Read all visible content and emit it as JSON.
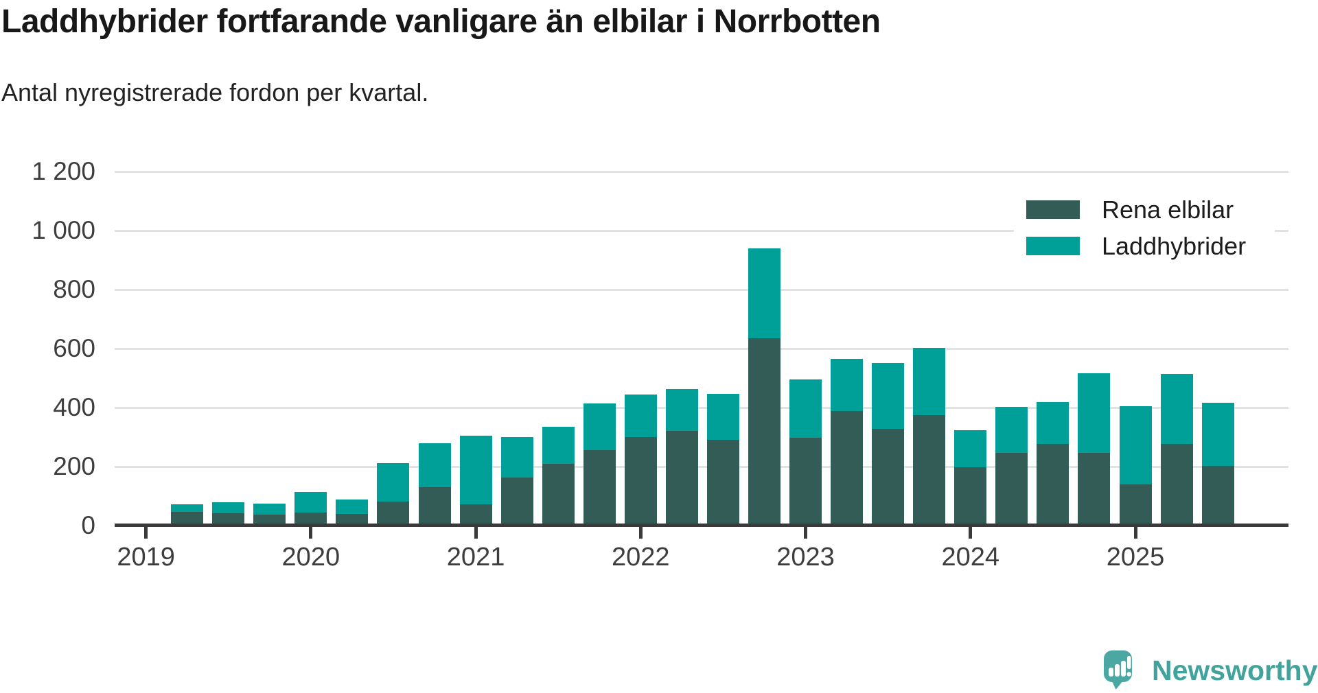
{
  "title": "Laddhybrider fortfarande vanligare än elbilar i Norrbotten",
  "subtitle": "Antal nyregistrerade fordon per kvartal.",
  "legend": {
    "items": [
      {
        "label": "Rena elbilar",
        "color": "#345c56"
      },
      {
        "label": "Laddhybrider",
        "color": "#00a099"
      }
    ]
  },
  "branding": {
    "name": "Newsworthy",
    "color": "#42a39d",
    "logo_icon": "newsworthy-speech-bubble-bar-chart-icon"
  },
  "chart_data": {
    "type": "bar",
    "stacked": true,
    "title": "Laddhybrider fortfarande vanligare än elbilar i Norrbotten",
    "subtitle": "Antal nyregistrerade fordon per kvartal.",
    "xlabel": "",
    "ylabel": "",
    "ylim": [
      0,
      1200
    ],
    "grid": true,
    "legend_position": "top-right",
    "y_ticks": [
      0,
      200,
      400,
      600,
      800,
      1000,
      1200
    ],
    "y_tick_labels": [
      "0",
      "200",
      "400",
      "600",
      "800",
      "1 000",
      "1 200"
    ],
    "x_tick_labels": [
      "2019",
      "2020",
      "2021",
      "2022",
      "2023",
      "2024",
      "2025"
    ],
    "categories": [
      "2019 Q2",
      "2019 Q3",
      "2019 Q4",
      "2020 Q1",
      "2020 Q2",
      "2020 Q3",
      "2020 Q4",
      "2021 Q1",
      "2021 Q2",
      "2021 Q3",
      "2021 Q4",
      "2022 Q1",
      "2022 Q2",
      "2022 Q3",
      "2022 Q4",
      "2023 Q1",
      "2023 Q2",
      "2023 Q3",
      "2023 Q4",
      "2024 Q1",
      "2024 Q2",
      "2024 Q3",
      "2024 Q4",
      "2025 Q1",
      "2025 Q2",
      "2025 Q3"
    ],
    "series": [
      {
        "name": "Rena elbilar",
        "color": "#345c56",
        "values": [
          45,
          40,
          35,
          43,
          37,
          79,
          128,
          70,
          160,
          208,
          254,
          298,
          319,
          289,
          632,
          296,
          385,
          325,
          373,
          195,
          244,
          275,
          244,
          138,
          275,
          199
        ]
      },
      {
        "name": "Laddhybrider",
        "color": "#00a099",
        "values": [
          25,
          38,
          38,
          70,
          49,
          130,
          148,
          232,
          137,
          125,
          158,
          144,
          141,
          156,
          305,
          198,
          176,
          224,
          229,
          126,
          155,
          141,
          270,
          266,
          238,
          215
        ]
      }
    ]
  }
}
